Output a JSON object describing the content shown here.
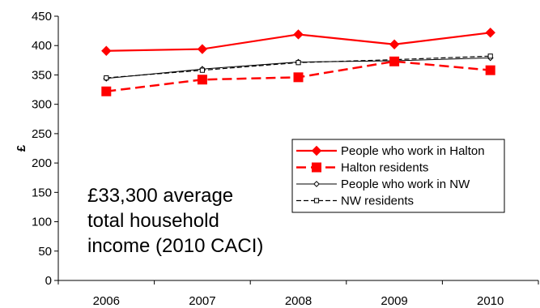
{
  "chart_data": {
    "type": "line",
    "categories": [
      "2006",
      "2007",
      "2008",
      "2009",
      "2010"
    ],
    "ylabel": "£",
    "xlabel": "",
    "ylim": [
      0,
      450
    ],
    "yticks": [
      0,
      50,
      100,
      150,
      200,
      250,
      300,
      350,
      400,
      450
    ],
    "grid": false,
    "legend": "right",
    "series": [
      {
        "name": "People who work in Halton",
        "values": [
          391,
          394,
          419,
          402,
          422
        ],
        "color": "#ff0000",
        "style": "solid-thick",
        "marker": "diamond-filled"
      },
      {
        "name": "Halton residents",
        "values": [
          322,
          342,
          346,
          373,
          358
        ],
        "color": "#ff0000",
        "style": "dashed-thick",
        "marker": "square-filled"
      },
      {
        "name": "People who work in NW",
        "values": [
          344,
          360,
          372,
          374,
          379
        ],
        "color": "#000000",
        "style": "solid-thin",
        "marker": "diamond-open"
      },
      {
        "name": "NW residents",
        "values": [
          345,
          358,
          371,
          376,
          382
        ],
        "color": "#000000",
        "style": "dashed-thin",
        "marker": "square-open"
      }
    ],
    "annotation": [
      "£33,300 average",
      "total household",
      "income (2010 CACI)"
    ]
  }
}
